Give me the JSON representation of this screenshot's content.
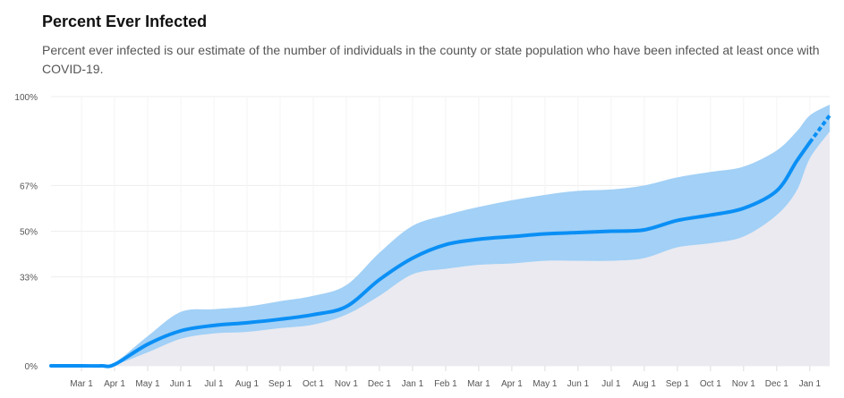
{
  "title": "Percent Ever Infected",
  "description": "Percent ever infected is our estimate of the number of individuals in the county or state population who have been infected at least once with COVID-19.",
  "chart_data": {
    "type": "area",
    "title": "Percent Ever Infected",
    "xlabel": "",
    "ylabel": "",
    "x_unit": "months since Mar 1, 2020",
    "xlim": [
      -0.92,
      22.6
    ],
    "ylim": [
      0,
      100
    ],
    "y_ticks": [
      {
        "v": 0,
        "label": "0%"
      },
      {
        "v": 33,
        "label": "33%"
      },
      {
        "v": 50,
        "label": "50%"
      },
      {
        "v": 67,
        "label": "67%"
      },
      {
        "v": 100,
        "label": "100%"
      }
    ],
    "x_ticks": [
      "Mar 1",
      "Apr 1",
      "May 1",
      "Jun 1",
      "Jul 1",
      "Aug 1",
      "Sep 1",
      "Oct 1",
      "Nov 1",
      "Dec 1",
      "Jan 1",
      "Feb 1",
      "Mar 1",
      "Apr 1",
      "May 1",
      "Jun 1",
      "Jul 1",
      "Aug 1",
      "Sep 1",
      "Oct 1",
      "Nov 1",
      "Dec 1",
      "Jan 1"
    ],
    "projection_start": 21.95,
    "colors": {
      "line": "#0a8ff5",
      "band": "#9dcdf5",
      "under": "#ebeaf0",
      "grid": "#eeeeee"
    },
    "series": [
      {
        "name": "estimate",
        "x": [
          -0.92,
          0,
          0.6,
          1,
          2,
          3,
          4,
          5,
          6,
          7,
          8,
          9,
          10,
          11,
          12,
          13,
          14,
          15,
          16,
          17,
          18,
          19,
          20,
          21,
          21.6,
          22,
          22.6
        ],
        "values": [
          0,
          0,
          0,
          0.5,
          8,
          13,
          15,
          16,
          17.3,
          19,
          22,
          32,
          40,
          45,
          47,
          48,
          49,
          49.5,
          50,
          50.5,
          54,
          56,
          58.5,
          65,
          76,
          83,
          93
        ]
      },
      {
        "name": "lower",
        "x": [
          -0.92,
          0,
          0.6,
          1,
          2,
          3,
          4,
          5,
          6,
          7,
          8,
          9,
          10,
          11,
          12,
          13,
          14,
          15,
          16,
          17,
          18,
          19,
          20,
          21,
          21.6,
          22,
          22.6
        ],
        "values": [
          0,
          0,
          0,
          0.3,
          5,
          10,
          12,
          12.6,
          14,
          15.3,
          19,
          26,
          34,
          36,
          37.5,
          38,
          39,
          39,
          39,
          40,
          44,
          45.5,
          48,
          56,
          65,
          77,
          87
        ]
      },
      {
        "name": "upper",
        "x": [
          -0.92,
          0,
          0.6,
          1,
          2,
          3,
          4,
          5,
          6,
          7,
          8,
          9,
          10,
          11,
          12,
          13,
          14,
          15,
          16,
          17,
          18,
          19,
          20,
          21,
          21.6,
          22,
          22.6
        ],
        "values": [
          0,
          0,
          0,
          1,
          11,
          20,
          21,
          22,
          24,
          26,
          30,
          42,
          52,
          56,
          59,
          61.5,
          63.5,
          65,
          65.5,
          67,
          70,
          72,
          74,
          80,
          87,
          93,
          97
        ]
      }
    ]
  }
}
